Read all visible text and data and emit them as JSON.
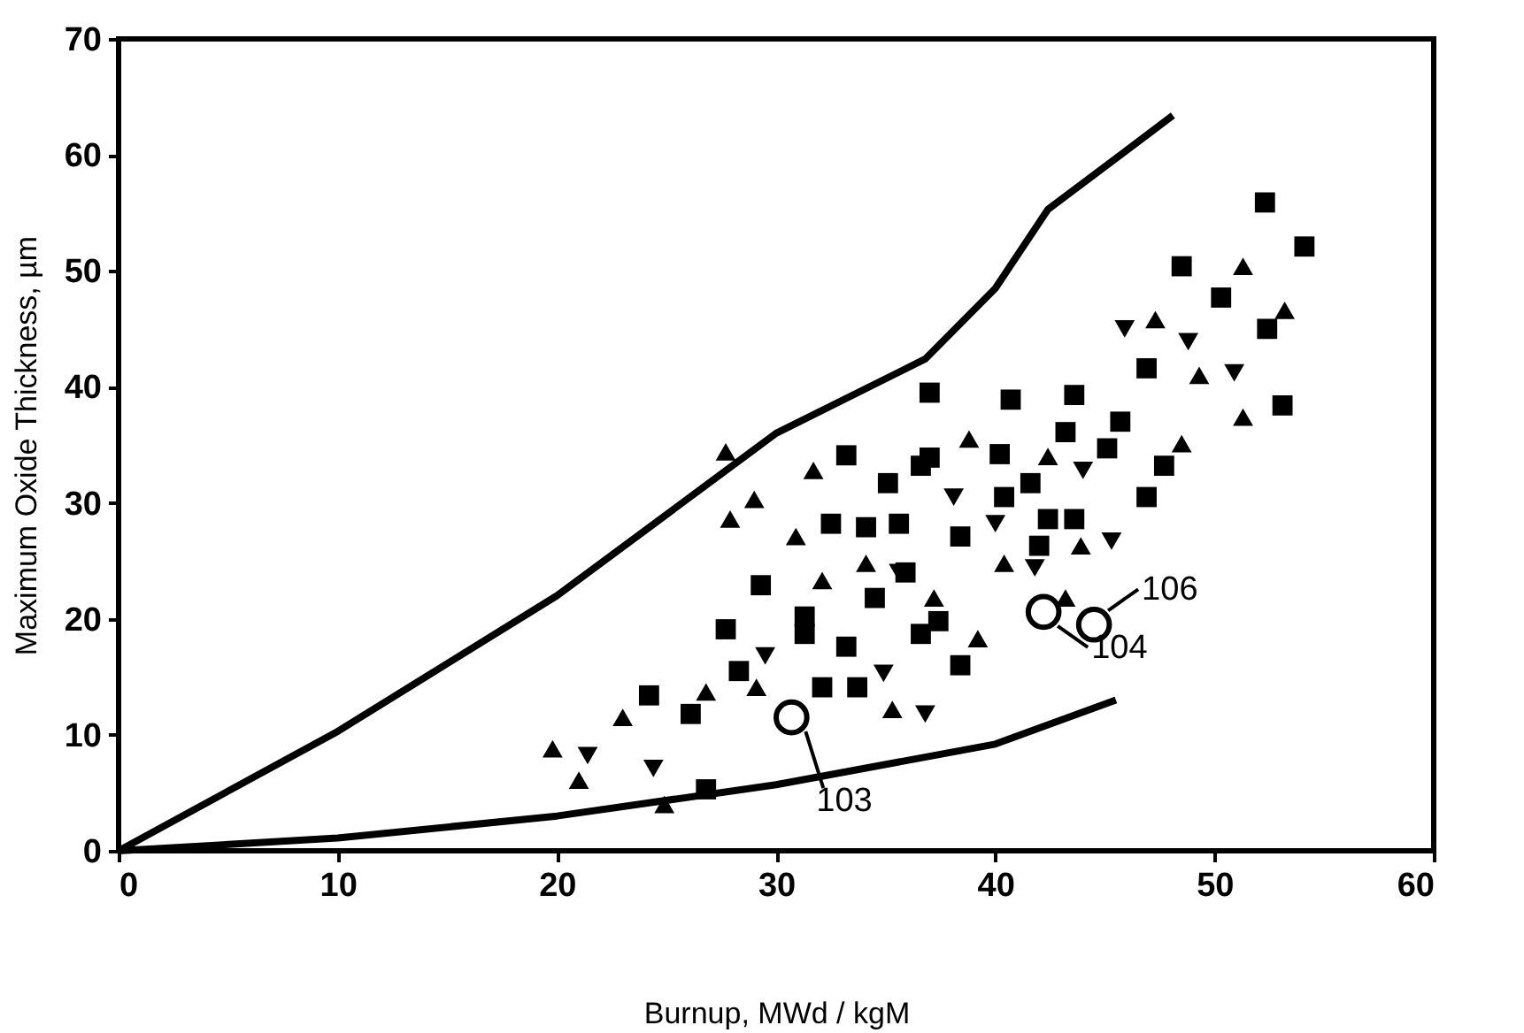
{
  "chart_data": {
    "type": "scatter",
    "xlabel": "Burnup, MWd / kgM",
    "ylabel": "Maximum Oxide Thickness, µm",
    "xlim": [
      0,
      60
    ],
    "xticks": [
      0,
      10,
      20,
      30,
      40,
      50,
      60
    ],
    "ylim": [
      0,
      70
    ],
    "yticks": [
      0,
      10,
      20,
      30,
      40,
      50,
      60,
      70
    ],
    "grid": false,
    "legend": false,
    "series": [
      {
        "type": "line",
        "color": "#000000",
        "marker": "none",
        "line_style": "solid",
        "x": [
          0,
          10,
          20,
          30,
          36.8,
          40,
          42.4,
          48.1
        ],
        "values": [
          0,
          10.3,
          22,
          36,
          42.4,
          48.5,
          55.3,
          63.4
        ]
      },
      {
        "type": "line",
        "color": "#000000",
        "marker": "none",
        "line_style": "solid",
        "x": [
          0,
          10,
          20,
          30,
          40,
          45.5
        ],
        "values": [
          0,
          1.1,
          3,
          5.7,
          9.2,
          13
        ]
      },
      {
        "type": "scatter",
        "color": "#000000",
        "marker": "square",
        "x": [
          37,
          40.7,
          43.6,
          43.2,
          33.2,
          37,
          40.2,
          35.1,
          36.6,
          41.6,
          32.5,
          34.1,
          35.6,
          38.4,
          40.4,
          42.4,
          45.1,
          45.7,
          46.9,
          48.5,
          50.3,
          52.3,
          54.1,
          52.4,
          53.1,
          46.9,
          47.7,
          35.9,
          34.5,
          29.3,
          31.3,
          31.3,
          27.7,
          28.3,
          33.2,
          36.6,
          37.4,
          32.1,
          33.7,
          38.4,
          24.2,
          26.1,
          26.8,
          42,
          43.6
        ],
        "values": [
          39.5,
          38.9,
          39.3,
          36.1,
          34.1,
          33.9,
          34.2,
          31.7,
          33.2,
          31.7,
          28.2,
          27.9,
          28.2,
          27.1,
          30.5,
          28.6,
          34.7,
          37,
          41.6,
          50.4,
          47.7,
          55.9,
          52.1,
          45,
          38.4,
          30.5,
          33.2,
          24,
          21.8,
          22.9,
          20.2,
          18.7,
          19.1,
          15.5,
          17.6,
          18.7,
          19.8,
          14.1,
          14.1,
          16,
          13.4,
          11.8,
          5.3,
          26.3,
          28.6
        ]
      },
      {
        "type": "scatter",
        "color": "#000000",
        "marker": "triangle",
        "x": [
          27.7,
          29,
          27.9,
          31.7,
          30.9,
          32.1,
          34.1,
          38.8,
          42.4,
          40.4,
          43.9,
          48.5,
          47.3,
          51.3,
          53.2,
          49.3,
          51.3,
          37.2,
          39.2,
          35.3,
          26.8,
          23,
          19.8,
          21,
          24.9,
          29.1,
          43.2
        ],
        "values": [
          34.4,
          30.3,
          28.6,
          32.8,
          27.1,
          23.3,
          24.8,
          35.5,
          34,
          24.8,
          26.3,
          35.1,
          45.8,
          50.4,
          46.6,
          41,
          37.4,
          21.8,
          18.3,
          12.2,
          13.7,
          11.5,
          8.8,
          6.1,
          4,
          14.1,
          21.8
        ]
      },
      {
        "type": "scatter",
        "color": "#000000",
        "marker": "triangle-down",
        "x": [
          21.4,
          24.4,
          29.5,
          36.8,
          34.9,
          35.6,
          38.1,
          44,
          45.3,
          45.9,
          48.8,
          50.9,
          41.8,
          40
        ],
        "values": [
          8.2,
          7.1,
          16.8,
          11.8,
          15.3,
          24,
          30.5,
          32.8,
          26.7,
          45,
          43.9,
          41.2,
          24.4,
          28.2
        ]
      },
      {
        "type": "scatter",
        "color": "#000000",
        "marker": "circle",
        "x": [
          30.7,
          42.2,
          44.5
        ],
        "values": [
          11.5,
          20.6,
          19.5
        ]
      }
    ],
    "annotations": [
      {
        "text": "103",
        "x": 30.7,
        "y": 11.5
      },
      {
        "text": "104",
        "x": 42.2,
        "y": 20.6
      },
      {
        "text": "106",
        "x": 44.5,
        "y": 19.5
      }
    ]
  }
}
